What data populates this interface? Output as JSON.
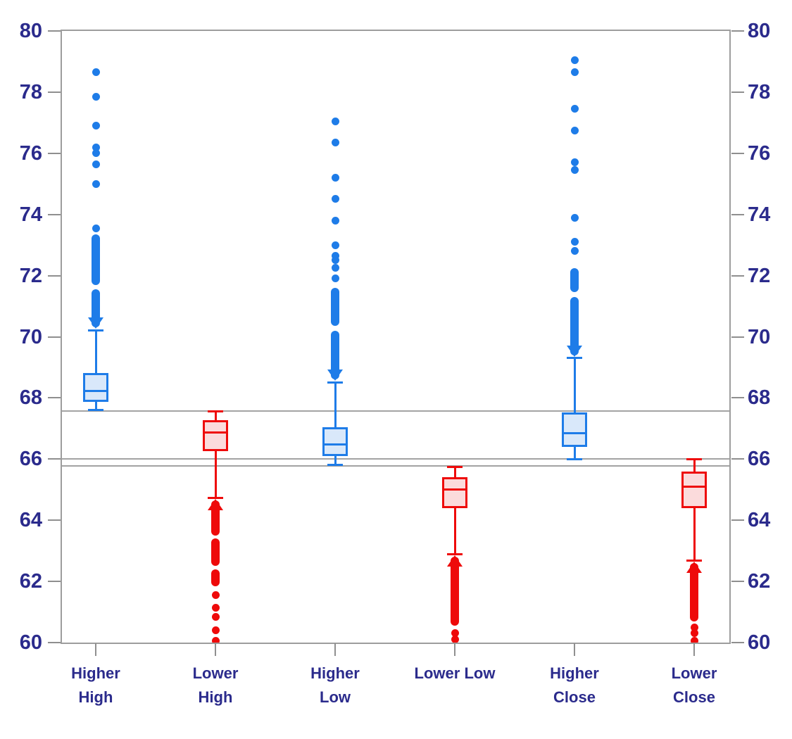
{
  "chart_data": {
    "type": "boxplot",
    "title": "",
    "categories": [
      "Higher High",
      "Lower High",
      "Higher Low",
      "Lower Low",
      "Higher Close",
      "Lower Close"
    ],
    "x_labels_lines": [
      [
        "Higher",
        "High"
      ],
      [
        "Lower",
        "High"
      ],
      [
        "Higher",
        "Low"
      ],
      [
        "Lower Low"
      ],
      [
        "Higher",
        "Close"
      ],
      [
        "Lower",
        "Close"
      ]
    ],
    "y_axis": {
      "min": 60,
      "max": 80,
      "tick_step": 2,
      "ticks": [
        80,
        78,
        76,
        74,
        72,
        70,
        68,
        66,
        64,
        62,
        60
      ],
      "label_sides": "both",
      "grid": false
    },
    "reference_lines": [
      67.57,
      66.0,
      65.77
    ],
    "series": [
      {
        "label": "Higher High",
        "color": "blue",
        "outlier_side": "above",
        "whisker_low": 67.6,
        "q1": 67.88,
        "median": 68.22,
        "q3": 68.82,
        "whisker_high": 70.2,
        "outlier_dense_segments": [
          [
            70.3,
            71.55
          ],
          [
            71.7,
            73.35
          ]
        ],
        "outlier_points": [
          73.55,
          75.0,
          75.65,
          76.0,
          76.2,
          76.9,
          77.85,
          78.65
        ]
      },
      {
        "label": "Lower High",
        "color": "red",
        "outlier_side": "below",
        "whisker_low": 64.72,
        "q1": 66.25,
        "median": 66.86,
        "q3": 67.28,
        "whisker_high": 67.55,
        "outlier_dense_segments": [
          [
            63.5,
            64.65
          ],
          [
            62.5,
            63.4
          ],
          [
            61.85,
            62.4
          ]
        ],
        "outlier_points": [
          61.55,
          61.15,
          60.85,
          60.4,
          60.05
        ]
      },
      {
        "label": "Higher Low",
        "color": "blue",
        "outlier_side": "above",
        "whisker_low": 65.8,
        "q1": 66.1,
        "median": 66.47,
        "q3": 67.05,
        "whisker_high": 68.5,
        "outlier_dense_segments": [
          [
            68.6,
            70.2
          ],
          [
            70.35,
            71.6
          ]
        ],
        "outlier_points": [
          71.9,
          72.25,
          72.5,
          72.65,
          73.0,
          73.8,
          74.5,
          75.2,
          76.35,
          77.05
        ]
      },
      {
        "label": "Lower Low",
        "color": "red",
        "outlier_side": "below",
        "whisker_low": 62.88,
        "q1": 64.4,
        "median": 65.0,
        "q3": 65.4,
        "whisker_high": 65.75,
        "outlier_dense_segments": [
          [
            60.55,
            62.8
          ]
        ],
        "outlier_points": [
          60.3,
          60.1
        ]
      },
      {
        "label": "Higher Close",
        "color": "blue",
        "outlier_side": "above",
        "whisker_low": 66.0,
        "q1": 66.4,
        "median": 66.84,
        "q3": 67.52,
        "whisker_high": 69.3,
        "outlier_dense_segments": [
          [
            69.4,
            71.3
          ],
          [
            71.45,
            72.25
          ]
        ],
        "outlier_points": [
          72.8,
          73.1,
          73.9,
          75.45,
          75.7,
          76.75,
          77.45,
          78.65,
          79.05
        ]
      },
      {
        "label": "Lower Close",
        "color": "red",
        "outlier_side": "below",
        "whisker_low": 62.68,
        "q1": 64.4,
        "median": 65.1,
        "q3": 65.6,
        "whisker_high": 66.0,
        "outlier_dense_segments": [
          [
            60.7,
            62.6
          ]
        ],
        "outlier_points": [
          60.5,
          60.3,
          60.05
        ]
      }
    ],
    "colors": {
      "blue_stroke": "#1e7ce8",
      "blue_fill": "#d9e8fa",
      "red_stroke": "#ee0a0a",
      "red_fill": "#fbdbdc",
      "axis_gray": "#9d9d9d",
      "label_navy": "#2b2b8c"
    }
  }
}
